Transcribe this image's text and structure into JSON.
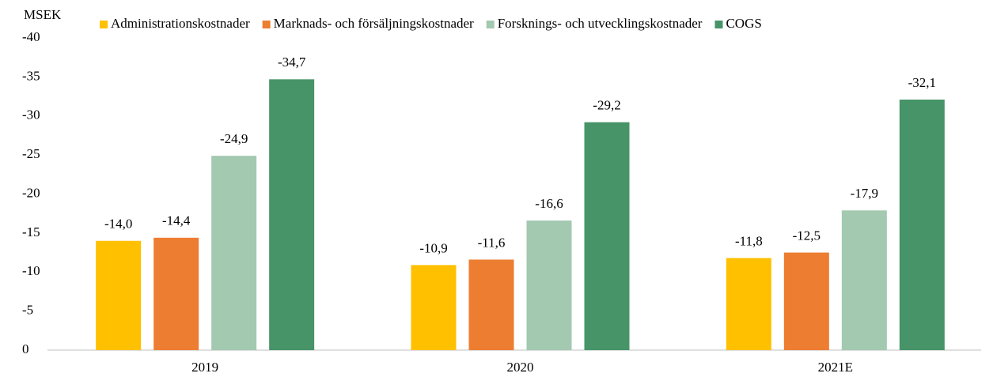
{
  "chart_data": {
    "type": "bar",
    "y_axis_label": "MSEK",
    "categories": [
      "2019",
      "2020",
      "2021E"
    ],
    "series": [
      {
        "name": "Administrationskostnader",
        "color": "#ffc000",
        "values": [
          -14.0,
          -10.9,
          -11.8
        ],
        "value_labels": [
          "-14,0",
          "-10,9",
          "-11,8"
        ]
      },
      {
        "name": "Marknads- och försäljningskostnader",
        "color": "#ed7d31",
        "values": [
          -14.4,
          -11.6,
          -12.5
        ],
        "value_labels": [
          "-14,4",
          "-11,6",
          "-12,5"
        ]
      },
      {
        "name": "Forsknings- och utvecklingskostnader",
        "color": "#a3c9b0",
        "values": [
          -24.9,
          -16.6,
          -17.9
        ],
        "value_labels": [
          "-24,9",
          "-16,6",
          "-17,9"
        ]
      },
      {
        "name": "COGS",
        "color": "#469468",
        "values": [
          -34.7,
          -29.2,
          -32.1
        ],
        "value_labels": [
          "-34,7",
          "-29,2",
          "-32,1"
        ]
      }
    ],
    "ylim": [
      0,
      -40
    ],
    "yticks": [
      0,
      -5,
      -10,
      -15,
      -20,
      -25,
      -30,
      -35,
      -40
    ],
    "grid": false,
    "legend": "top"
  }
}
